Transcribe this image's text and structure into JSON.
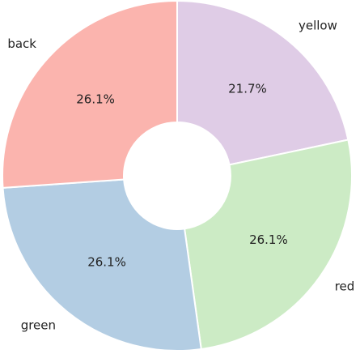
{
  "chart_data": {
    "type": "pie",
    "donut": true,
    "start_angle_deg": 90,
    "direction": "clockwise",
    "categories": [
      "yellow",
      "red",
      "green",
      "back"
    ],
    "values": [
      21.7,
      26.1,
      26.1,
      26.1
    ],
    "value_labels": [
      "21.7%",
      "26.1%",
      "26.1%",
      "26.1%"
    ],
    "colors": [
      "#dfcce6",
      "#ccebc5",
      "#b3cde3",
      "#fbb4ae"
    ],
    "title": "",
    "legend": false
  }
}
